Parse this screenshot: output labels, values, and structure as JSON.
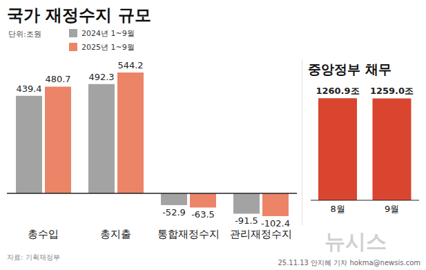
{
  "chart_data": [
    {
      "type": "bar",
      "title": "국가 재정수지 규모",
      "subtitle": "단위:조원",
      "categories": [
        "총수입",
        "총지출",
        "통합재정수지",
        "관리재정수지"
      ],
      "series": [
        {
          "name": "2024년 1~9월",
          "color": "#a3a3a3",
          "values": [
            439.4,
            492.3,
            -52.9,
            -91.5
          ]
        },
        {
          "name": "2025년 1~9월",
          "color": "#ec8468",
          "values": [
            480.7,
            544.2,
            -63.5,
            -102.4
          ]
        }
      ],
      "ylim": [
        -140,
        560
      ],
      "grid": false,
      "legend": "top-left",
      "data_labels": true,
      "tick_labels": "x"
    },
    {
      "type": "bar",
      "title": "중앙정부 채무",
      "categories": [
        "8월",
        "9월"
      ],
      "values": [
        1260.9,
        1259.0
      ],
      "value_labels": [
        "1260.9조",
        "1259.0조"
      ],
      "color": "#d9452f",
      "ylim": [
        0,
        1450
      ],
      "grid": false,
      "data_labels": true,
      "tick_labels": "x"
    }
  ],
  "source": "자료: 기획재정부",
  "credit": "25.11.13 안지혜 기자 hokma@newsis.com",
  "logo": "뉴시스"
}
